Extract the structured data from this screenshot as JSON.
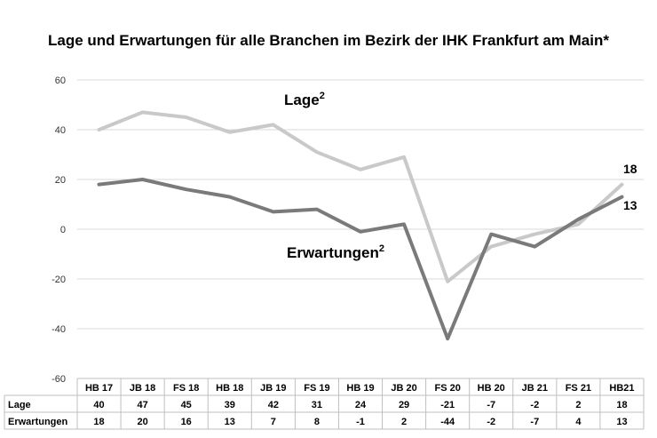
{
  "chart_data": {
    "type": "line",
    "title": "Lage und Erwartungen für alle Branchen im Bezirk der IHK Frankfurt am Main*",
    "categories": [
      "HB 17",
      "JB 18",
      "FS 18",
      "HB 18",
      "JB 19",
      "FS 19",
      "HB 19",
      "JB 20",
      "FS 20",
      "HB 20",
      "JB 21",
      "FS 21",
      "HB21"
    ],
    "series": [
      {
        "name": "Lage",
        "label": "Lage",
        "superscript": "2",
        "color": "#c9c9c9",
        "values": [
          40,
          47,
          45,
          39,
          42,
          31,
          24,
          29,
          -21,
          -7,
          -2,
          2,
          18
        ],
        "end_label": "18"
      },
      {
        "name": "Erwartungen",
        "label": "Erwartungen",
        "superscript": "2",
        "color": "#7a7a7a",
        "values": [
          18,
          20,
          16,
          13,
          7,
          8,
          -1,
          2,
          -44,
          -2,
          -7,
          4,
          13
        ],
        "end_label": "13"
      }
    ],
    "yticks": [
      "60",
      "40",
      "20",
      "0",
      "-20",
      "-40",
      "-60"
    ],
    "ylim": [
      -60,
      60
    ],
    "grid": "horizontal",
    "table": {
      "rows": [
        {
          "label": "Lage",
          "cells": [
            "40",
            "47",
            "45",
            "39",
            "42",
            "31",
            "24",
            "29",
            "-21",
            "-7",
            "-2",
            "2",
            "18"
          ]
        },
        {
          "label": "Erwartungen",
          "cells": [
            "18",
            "20",
            "16",
            "13",
            "7",
            "8",
            "-1",
            "2",
            "-44",
            "-2",
            "-7",
            "4",
            "13"
          ]
        }
      ]
    }
  }
}
